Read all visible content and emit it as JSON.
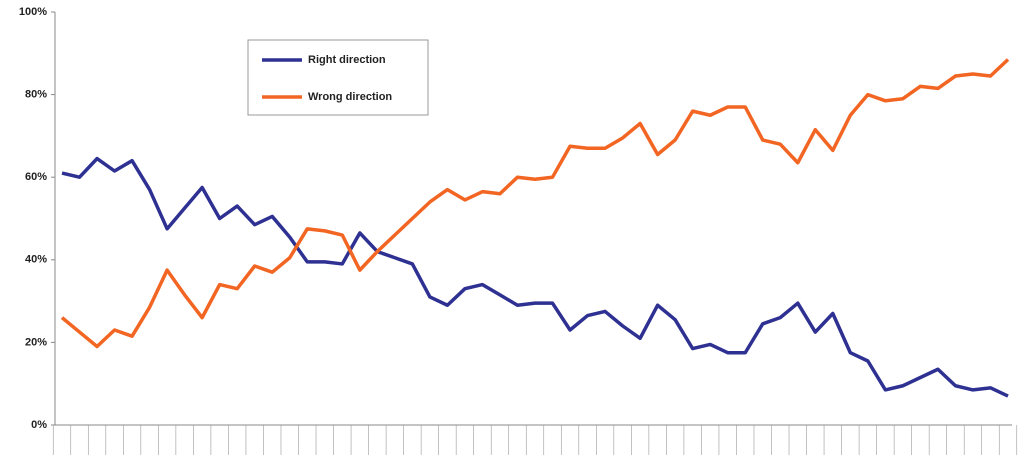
{
  "chart_data": {
    "type": "line",
    "categories": [
      null,
      null,
      null,
      null,
      null,
      null,
      null,
      null,
      null,
      null,
      null,
      null,
      null,
      null,
      null,
      null,
      null,
      null,
      null,
      null,
      null,
      null,
      null,
      null,
      null,
      null,
      null,
      null,
      null,
      null,
      null,
      null,
      null,
      null,
      null,
      null,
      null,
      null,
      null,
      null,
      null,
      null,
      null,
      null,
      null,
      null,
      null,
      null,
      null,
      null,
      null,
      null,
      null,
      null,
      null
    ],
    "series": [
      {
        "name": "Right direction",
        "color": "#2e3192",
        "values": [
          61,
          60,
          64.5,
          61.5,
          64,
          57,
          47.5,
          52.5,
          57.5,
          50,
          53,
          48.5,
          50.5,
          45.5,
          39.5,
          39.5,
          39,
          46.5,
          42,
          40.5,
          39,
          31,
          29,
          33,
          34,
          31.5,
          29,
          29.5,
          29.5,
          23,
          26.5,
          27.5,
          24,
          21,
          29,
          25.5,
          18.5,
          19.5,
          17.5,
          17.5,
          24.5,
          26,
          29.5,
          22.5,
          27,
          17.5,
          15.5,
          8.5,
          9.5,
          11.5,
          13.5,
          9.5,
          8.5,
          9,
          7
        ]
      },
      {
        "name": "Wrong direction",
        "color": "#f26522",
        "values": [
          26,
          22.5,
          19,
          23,
          21.5,
          28.5,
          37.5,
          31.5,
          26,
          34,
          33,
          38.5,
          37,
          40.5,
          47.5,
          47,
          46,
          37.5,
          42,
          46,
          50,
          54,
          57,
          54.5,
          56.5,
          56,
          60,
          59.5,
          60,
          67.5,
          67,
          67,
          69.5,
          73,
          65.5,
          69,
          76,
          75,
          77,
          77,
          69,
          68,
          63.5,
          71.5,
          66.5,
          75,
          80,
          78.5,
          79,
          82,
          81.5,
          84.5,
          85,
          84.5,
          88.5
        ]
      }
    ],
    "ylim": [
      0,
      100
    ],
    "yticks": [
      {
        "value": 0,
        "label": "0%"
      },
      {
        "value": 20,
        "label": "20%"
      },
      {
        "value": 40,
        "label": "40%"
      },
      {
        "value": 60,
        "label": "60%"
      },
      {
        "value": 80,
        "label": "80%"
      },
      {
        "value": 100,
        "label": "100%"
      }
    ],
    "legend": "top-left"
  }
}
